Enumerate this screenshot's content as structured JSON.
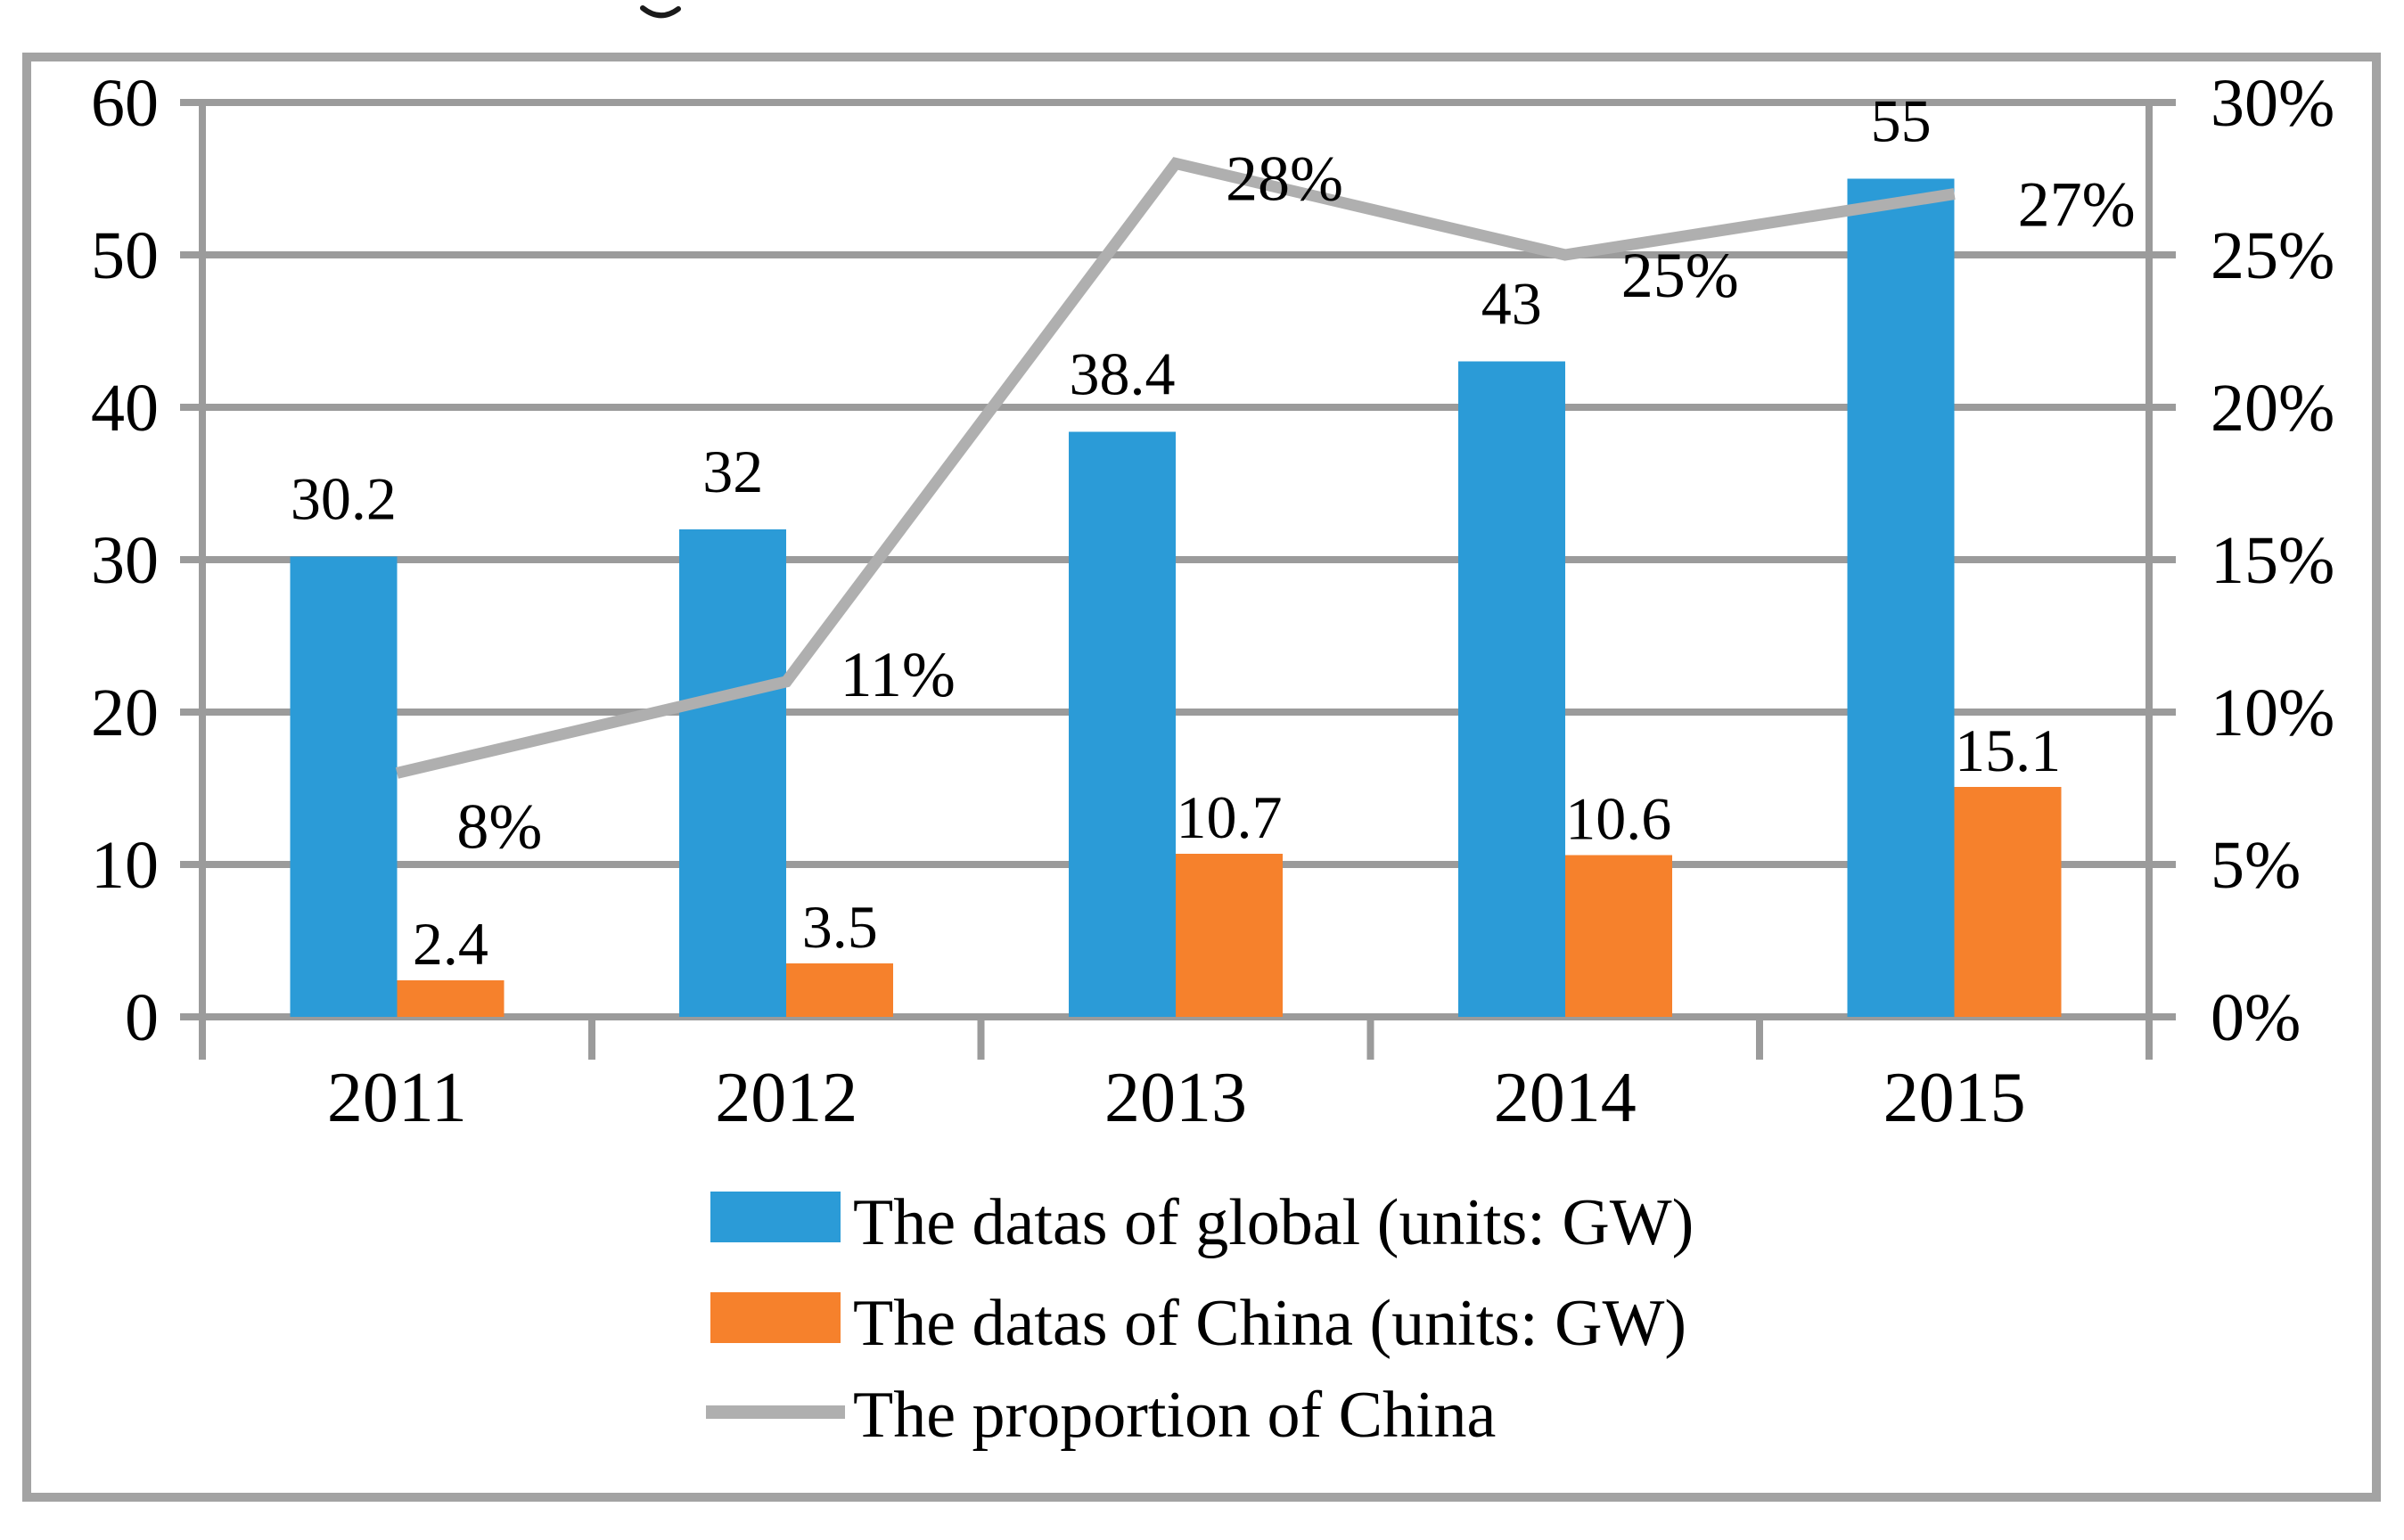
{
  "colors": {
    "global_bar": "#2B9BD7",
    "china_bar": "#F6812C",
    "proportion_line": "#AFAFAF",
    "grid": "#9B9B9B",
    "border": "#A3A3A3"
  },
  "chart_data": {
    "type": "bar",
    "subtype": "grouped-bars-with-line-overlay",
    "categories": [
      "2011",
      "2012",
      "2013",
      "2014",
      "2015"
    ],
    "series": [
      {
        "name": "The datas of global (units: GW)",
        "type": "bar",
        "axis": "left",
        "color": "#2B9BD7",
        "values": [
          30.2,
          32,
          38.4,
          43,
          55
        ],
        "labels": [
          "30.2",
          "32",
          "38.4",
          "43",
          "55"
        ]
      },
      {
        "name": "The datas of China (units: GW)",
        "type": "bar",
        "axis": "left",
        "color": "#F6812C",
        "values": [
          2.4,
          3.5,
          10.7,
          10.6,
          15.1
        ],
        "labels": [
          "2.4",
          "3.5",
          "10.7",
          "10.6",
          "15.1"
        ]
      },
      {
        "name": "The proportion of China",
        "type": "line",
        "axis": "right",
        "color": "#AFAFAF",
        "values": [
          0.08,
          0.11,
          0.28,
          0.25,
          0.27
        ],
        "labels": [
          "8%",
          "11%",
          "28%",
          "25%",
          "27%"
        ]
      }
    ],
    "left_axis": {
      "min": 0,
      "max": 60,
      "ticks": [
        "60",
        "50",
        "40",
        "30",
        "20",
        "10",
        "0"
      ]
    },
    "right_axis": {
      "min": 0,
      "max": 0.3,
      "ticks": [
        "30%",
        "25%",
        "20%",
        "15%",
        "10%",
        "5%",
        "0%"
      ]
    },
    "legend": [
      "The datas of global (units: GW)",
      "The datas of China (units: GW)",
      "The proportion of China"
    ],
    "legend_position": "bottom",
    "grid": true,
    "title": ""
  }
}
